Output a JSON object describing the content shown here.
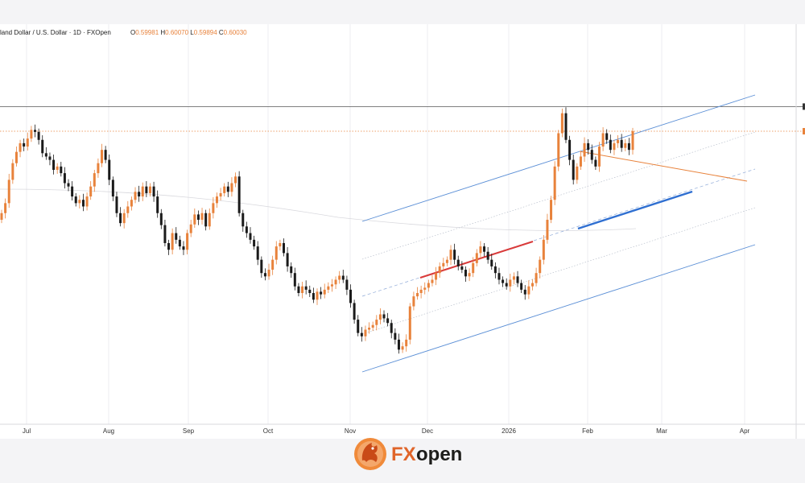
{
  "legend": {
    "symbol": "land Dollar / U.S. Dollar · 1D · FXOpen",
    "ohlc": [
      {
        "label": "O",
        "value": "0.59981"
      },
      {
        "label": "H",
        "value": "0.60070"
      },
      {
        "label": "L",
        "value": "0.59894"
      },
      {
        "label": "C",
        "value": "0.60030"
      }
    ]
  },
  "brand": {
    "name_fx": "FX",
    "name_open": "open",
    "fx_color": "#e0652a",
    "open_color": "#1d1d1b"
  },
  "colors": {
    "up_candle": "#e8823b",
    "down_candle": "#1a1a1a",
    "channel": "#5b8fd6",
    "resistance": "#d93a3a",
    "support": "#2f6fd1",
    "triangle_top": "#e8823b",
    "price_line": "#e8823b",
    "high_line": "#555555"
  },
  "chart_data": {
    "type": "candlestick",
    "interval": "1D",
    "x_ticks": [
      "Jul",
      "Aug",
      "Sep",
      "Oct",
      "Nov",
      "Dec",
      "2026",
      "Feb",
      "Mar",
      "Apr"
    ],
    "grid": true,
    "candle_closes": [
      0.588,
      0.5895,
      0.593,
      0.5955,
      0.5972,
      0.5985,
      0.598,
      0.5992,
      0.6005,
      0.6002,
      0.599,
      0.597,
      0.5965,
      0.596,
      0.5945,
      0.595,
      0.594,
      0.5925,
      0.592,
      0.5905,
      0.5895,
      0.59,
      0.589,
      0.5905,
      0.592,
      0.594,
      0.5955,
      0.5975,
      0.596,
      0.593,
      0.5905,
      0.588,
      0.5865,
      0.588,
      0.589,
      0.59,
      0.5912,
      0.5905,
      0.592,
      0.591,
      0.592,
      0.5905,
      0.588,
      0.5862,
      0.5835,
      0.5825,
      0.585,
      0.584,
      0.583,
      0.5825,
      0.585,
      0.5863,
      0.5878,
      0.587,
      0.588,
      0.586,
      0.588,
      0.5895,
      0.5905,
      0.591,
      0.592,
      0.5912,
      0.5925,
      0.5935,
      0.588,
      0.586,
      0.585,
      0.584,
      0.583,
      0.581,
      0.579,
      0.5785,
      0.5795,
      0.581,
      0.583,
      0.5835,
      0.582,
      0.58,
      0.579,
      0.577,
      0.576,
      0.577,
      0.5765,
      0.576,
      0.575,
      0.5762,
      0.5758,
      0.5765,
      0.577,
      0.5773,
      0.578,
      0.5786,
      0.578,
      0.5765,
      0.5745,
      0.572,
      0.57,
      0.5695,
      0.5705,
      0.5708,
      0.5712,
      0.572,
      0.5728,
      0.5722,
      0.5715,
      0.57,
      0.569,
      0.5675,
      0.568,
      0.569,
      0.574,
      0.5755,
      0.576,
      0.5765,
      0.5768,
      0.5775,
      0.578,
      0.579,
      0.58,
      0.5805,
      0.581,
      0.5825,
      0.581,
      0.58,
      0.5795,
      0.5785,
      0.579,
      0.5805,
      0.582,
      0.583,
      0.5822,
      0.581,
      0.58,
      0.579,
      0.578,
      0.5775,
      0.577,
      0.578,
      0.5785,
      0.5775,
      0.5765,
      0.5758,
      0.577,
      0.5775,
      0.579,
      0.581,
      0.584,
      0.587,
      0.59,
      0.595,
      0.6,
      0.603,
      0.599,
      0.596,
      0.593,
      0.595,
      0.5965,
      0.5985,
      0.5975,
      0.596,
      0.595,
      0.598,
      0.6,
      0.599,
      0.5975,
      0.5985,
      0.599,
      0.5978,
      0.5985,
      0.5975,
      0.6003
    ],
    "current_price": 0.6003,
    "period_high": 0.604
  }
}
